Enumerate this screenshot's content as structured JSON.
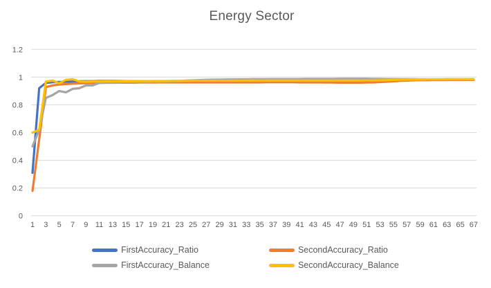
{
  "colors": {
    "background": "#FFFFFF",
    "gridline": "#D9D9D9",
    "axis_text": "#595959",
    "title_text": "#595959"
  },
  "chart_data": {
    "type": "line",
    "title": "Energy Sector",
    "xlabel": "",
    "ylabel": "",
    "x": [
      1,
      2,
      3,
      4,
      5,
      6,
      7,
      8,
      9,
      10,
      11,
      12,
      13,
      14,
      15,
      16,
      17,
      18,
      19,
      20,
      21,
      22,
      23,
      24,
      25,
      26,
      27,
      28,
      29,
      30,
      31,
      32,
      33,
      34,
      35,
      36,
      37,
      38,
      39,
      40,
      41,
      42,
      43,
      44,
      45,
      46,
      47,
      48,
      49,
      50,
      51,
      52,
      53,
      54,
      55,
      56,
      57,
      58,
      59,
      60,
      61,
      62,
      63,
      64,
      65,
      66,
      67
    ],
    "x_tick_labels": [
      "1",
      "3",
      "5",
      "7",
      "9",
      "11",
      "13",
      "15",
      "17",
      "19",
      "21",
      "23",
      "25",
      "27",
      "29",
      "31",
      "33",
      "35",
      "37",
      "39",
      "41",
      "43",
      "45",
      "47",
      "49",
      "51",
      "53",
      "55",
      "57",
      "59",
      "61",
      "63",
      "65",
      "67"
    ],
    "ylim": [
      0,
      1.2
    ],
    "y_ticks": [
      0,
      0.2,
      0.4,
      0.6,
      0.8,
      1,
      1.2
    ],
    "y_tick_labels": [
      "0",
      "0.2",
      "0.4",
      "0.6",
      "0.8",
      "1",
      "1.2"
    ],
    "grid": true,
    "legend_position": "bottom",
    "series": [
      {
        "name": "FirstAccuracy_Ratio",
        "color": "#4472C4",
        "values": [
          0.31,
          0.92,
          0.958,
          0.963,
          0.965,
          0.966,
          0.968,
          0.97,
          0.971,
          0.971,
          0.972,
          0.972,
          0.972,
          0.972,
          0.971,
          0.971,
          0.971,
          0.971,
          0.971,
          0.971,
          0.971,
          0.971,
          0.971,
          0.971,
          0.971,
          0.971,
          0.971,
          0.971,
          0.971,
          0.971,
          0.971,
          0.971,
          0.971,
          0.971,
          0.971,
          0.971,
          0.971,
          0.971,
          0.971,
          0.971,
          0.972,
          0.972,
          0.973,
          0.976,
          0.975,
          0.972,
          0.97,
          0.969,
          0.969,
          0.969,
          0.969,
          0.969,
          0.97,
          0.97,
          0.972,
          0.975,
          0.977,
          0.978,
          0.979,
          0.979,
          0.98,
          0.98,
          0.98,
          0.98,
          0.98,
          0.98,
          0.98
        ]
      },
      {
        "name": "SecondAccuracy_Ratio",
        "color": "#ED7D31",
        "values": [
          0.18,
          0.55,
          0.928,
          0.94,
          0.946,
          0.95,
          0.953,
          0.955,
          0.956,
          0.957,
          0.958,
          0.959,
          0.959,
          0.96,
          0.96,
          0.96,
          0.961,
          0.961,
          0.961,
          0.962,
          0.962,
          0.962,
          0.962,
          0.962,
          0.962,
          0.962,
          0.962,
          0.962,
          0.962,
          0.962,
          0.962,
          0.962,
          0.962,
          0.962,
          0.962,
          0.963,
          0.963,
          0.963,
          0.963,
          0.963,
          0.962,
          0.962,
          0.962,
          0.962,
          0.961,
          0.961,
          0.96,
          0.96,
          0.96,
          0.96,
          0.961,
          0.962,
          0.964,
          0.967,
          0.97,
          0.973,
          0.975,
          0.977,
          0.978,
          0.978,
          0.979,
          0.979,
          0.979,
          0.98,
          0.98,
          0.98,
          0.98
        ]
      },
      {
        "name": "FirstAccuracy_Balance",
        "color": "#A5A5A5",
        "values": [
          0.5,
          0.62,
          0.85,
          0.87,
          0.9,
          0.89,
          0.915,
          0.92,
          0.94,
          0.94,
          0.958,
          0.96,
          0.962,
          0.96,
          0.963,
          0.962,
          0.965,
          0.963,
          0.966,
          0.964,
          0.968,
          0.97,
          0.972,
          0.975,
          0.977,
          0.979,
          0.981,
          0.982,
          0.982,
          0.983,
          0.983,
          0.984,
          0.984,
          0.985,
          0.985,
          0.985,
          0.986,
          0.986,
          0.986,
          0.986,
          0.986,
          0.987,
          0.987,
          0.987,
          0.987,
          0.987,
          0.988,
          0.988,
          0.988,
          0.988,
          0.988,
          0.987,
          0.987,
          0.986,
          0.986,
          0.985,
          0.985,
          0.985,
          0.984,
          0.984,
          0.984,
          0.984,
          0.984,
          0.984,
          0.984,
          0.984,
          0.984
        ]
      },
      {
        "name": "SecondAccuracy_Balance",
        "color": "#FFC000",
        "values": [
          0.6,
          0.62,
          0.968,
          0.975,
          0.955,
          0.98,
          0.985,
          0.968,
          0.967,
          0.968,
          0.968,
          0.969,
          0.969,
          0.97,
          0.97,
          0.97,
          0.971,
          0.971,
          0.972,
          0.972,
          0.972,
          0.973,
          0.973,
          0.973,
          0.974,
          0.974,
          0.974,
          0.974,
          0.974,
          0.974,
          0.974,
          0.975,
          0.975,
          0.975,
          0.975,
          0.975,
          0.975,
          0.975,
          0.975,
          0.975,
          0.975,
          0.975,
          0.975,
          0.975,
          0.975,
          0.975,
          0.975,
          0.975,
          0.975,
          0.975,
          0.976,
          0.976,
          0.977,
          0.978,
          0.98,
          0.981,
          0.982,
          0.983,
          0.983,
          0.984,
          0.984,
          0.984,
          0.985,
          0.985,
          0.985,
          0.985,
          0.985
        ]
      }
    ]
  }
}
